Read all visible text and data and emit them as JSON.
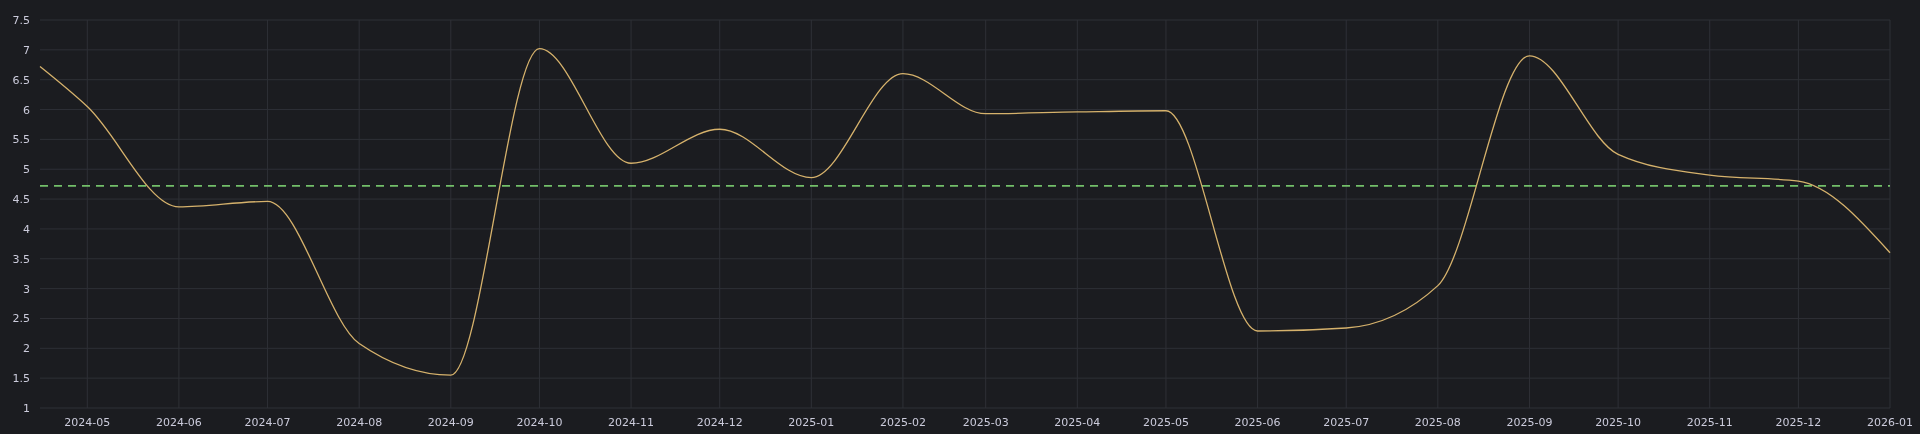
{
  "chart_data": {
    "type": "line",
    "x": [
      "2024-04-15",
      "2024-05",
      "2024-06",
      "2024-07",
      "2024-08",
      "2024-09",
      "2024-10",
      "2024-11",
      "2024-12",
      "2025-01",
      "2025-02",
      "2025-03",
      "2025-04",
      "2025-05",
      "2025-06",
      "2025-07",
      "2025-08",
      "2025-09",
      "2025-10",
      "2025-11",
      "2025-12",
      "2026-01"
    ],
    "series": [
      {
        "color": "#d6b26c",
        "values": [
          6.72,
          6.05,
          4.37,
          4.46,
          2.08,
          1.55,
          7.02,
          5.1,
          5.67,
          4.86,
          6.6,
          5.93,
          5.96,
          5.98,
          2.29,
          2.34,
          3.05,
          6.9,
          5.25,
          4.9,
          4.8,
          3.6
        ]
      }
    ],
    "xlim": [
      "2024-04-15",
      "2026-01"
    ],
    "xticks": [
      "2024-05",
      "2024-06",
      "2024-07",
      "2024-08",
      "2024-09",
      "2024-10",
      "2024-11",
      "2024-12",
      "2025-01",
      "2025-02",
      "2025-03",
      "2025-04",
      "2025-05",
      "2025-06",
      "2025-07",
      "2025-08",
      "2025-09",
      "2025-10",
      "2025-11",
      "2025-12",
      "2026-01"
    ],
    "ylim": [
      1,
      7.5
    ],
    "yticks": [
      1,
      1.5,
      2,
      2.5,
      3,
      3.5,
      4,
      4.5,
      5,
      5.5,
      6,
      6.5,
      7,
      7.5
    ],
    "ref_lines": [
      {
        "axis": "y",
        "value": 4.72,
        "color": "#73bf69",
        "line_style": "dashed"
      }
    ],
    "grid": true,
    "marker": "none",
    "line_style": "solid"
  }
}
